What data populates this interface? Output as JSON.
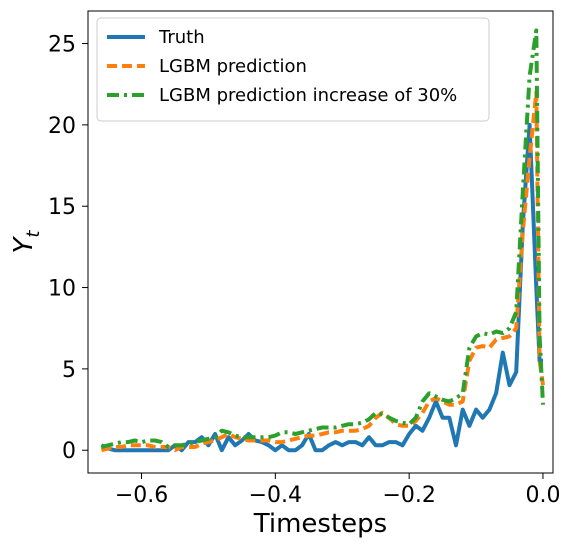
{
  "chart_data": {
    "type": "line",
    "title": "",
    "xlabel": "Timesteps",
    "ylabel": "Y",
    "ylabel_subscript": "t",
    "xlim": [
      -0.68,
      0.015
    ],
    "ylim": [
      -1.4,
      27
    ],
    "xticks": [
      -0.6,
      -0.4,
      -0.2,
      0.0
    ],
    "xtick_labels": [
      "−0.6",
      "−0.4",
      "−0.2",
      "0.0"
    ],
    "yticks": [
      0,
      5,
      10,
      15,
      20,
      25
    ],
    "ytick_labels": [
      "0",
      "5",
      "10",
      "15",
      "20",
      "25"
    ],
    "grid": false,
    "legend_position": "top-left",
    "series": [
      {
        "name": "Truth",
        "color": "#1f77b4",
        "style": "solid",
        "x": [
          -0.66,
          -0.65,
          -0.64,
          -0.63,
          -0.62,
          -0.61,
          -0.6,
          -0.59,
          -0.58,
          -0.57,
          -0.56,
          -0.55,
          -0.54,
          -0.53,
          -0.52,
          -0.51,
          -0.5,
          -0.49,
          -0.48,
          -0.47,
          -0.46,
          -0.45,
          -0.44,
          -0.43,
          -0.42,
          -0.41,
          -0.4,
          -0.39,
          -0.38,
          -0.37,
          -0.36,
          -0.35,
          -0.34,
          -0.33,
          -0.32,
          -0.31,
          -0.3,
          -0.29,
          -0.28,
          -0.27,
          -0.26,
          -0.25,
          -0.24,
          -0.23,
          -0.22,
          -0.21,
          -0.2,
          -0.19,
          -0.18,
          -0.17,
          -0.16,
          -0.15,
          -0.14,
          -0.13,
          -0.12,
          -0.11,
          -0.1,
          -0.09,
          -0.08,
          -0.07,
          -0.06,
          -0.05,
          -0.04,
          -0.03,
          -0.02,
          -0.01,
          -0.005,
          0.0
        ],
        "values": [
          0.3,
          0.1,
          0.0,
          0.0,
          0.0,
          0.0,
          0.0,
          0.0,
          0.0,
          0.0,
          0.0,
          0.3,
          0.0,
          0.5,
          0.5,
          0.8,
          0.3,
          1.0,
          0.0,
          0.8,
          0.3,
          0.6,
          1.0,
          0.6,
          0.5,
          0.3,
          0.0,
          0.3,
          0.0,
          0.0,
          0.3,
          1.0,
          0.0,
          0.0,
          0.3,
          0.5,
          0.3,
          0.5,
          0.5,
          0.3,
          0.8,
          0.3,
          0.3,
          0.5,
          0.5,
          0.3,
          1.0,
          1.5,
          1.2,
          2.0,
          3.0,
          2.0,
          2.0,
          0.3,
          2.5,
          1.5,
          2.5,
          2.0,
          2.5,
          3.5,
          6.0,
          4.0,
          4.8,
          14.0,
          20.0,
          10.0,
          5.5,
          5.5
        ]
      },
      {
        "name": "LGBM prediction",
        "color": "#ff7f0e",
        "style": "dashed",
        "x": [
          -0.66,
          -0.65,
          -0.64,
          -0.63,
          -0.62,
          -0.61,
          -0.6,
          -0.59,
          -0.58,
          -0.57,
          -0.56,
          -0.55,
          -0.54,
          -0.53,
          -0.52,
          -0.51,
          -0.5,
          -0.49,
          -0.48,
          -0.47,
          -0.46,
          -0.45,
          -0.44,
          -0.43,
          -0.42,
          -0.41,
          -0.4,
          -0.39,
          -0.38,
          -0.37,
          -0.36,
          -0.35,
          -0.34,
          -0.33,
          -0.32,
          -0.31,
          -0.3,
          -0.29,
          -0.28,
          -0.27,
          -0.26,
          -0.25,
          -0.24,
          -0.23,
          -0.22,
          -0.21,
          -0.2,
          -0.19,
          -0.18,
          -0.17,
          -0.16,
          -0.15,
          -0.14,
          -0.13,
          -0.12,
          -0.11,
          -0.1,
          -0.09,
          -0.08,
          -0.07,
          -0.06,
          -0.05,
          -0.04,
          -0.03,
          -0.02,
          -0.01,
          -0.005,
          0.0
        ],
        "values": [
          0.0,
          0.1,
          0.2,
          0.2,
          0.3,
          0.3,
          0.3,
          0.3,
          0.2,
          0.2,
          0.2,
          0.0,
          0.2,
          0.2,
          0.2,
          0.4,
          0.5,
          0.6,
          0.8,
          1.0,
          0.8,
          0.7,
          0.6,
          0.6,
          0.6,
          0.6,
          0.5,
          0.5,
          0.6,
          0.7,
          0.8,
          0.9,
          0.9,
          1.0,
          1.1,
          1.1,
          1.2,
          1.2,
          1.2,
          1.3,
          1.5,
          2.0,
          2.3,
          2.0,
          1.6,
          1.5,
          1.5,
          1.8,
          2.3,
          3.0,
          3.2,
          3.0,
          2.8,
          2.8,
          3.0,
          5.5,
          6.3,
          6.4,
          6.3,
          6.8,
          6.9,
          7.0,
          7.5,
          13.5,
          18.0,
          22.0,
          5.5,
          4.0
        ]
      },
      {
        "name": "LGBM prediction increase of 30%",
        "color": "#2ca02c",
        "style": "dashdot",
        "x": [
          -0.66,
          -0.65,
          -0.64,
          -0.63,
          -0.62,
          -0.61,
          -0.6,
          -0.59,
          -0.58,
          -0.57,
          -0.56,
          -0.55,
          -0.54,
          -0.53,
          -0.52,
          -0.51,
          -0.5,
          -0.49,
          -0.48,
          -0.47,
          -0.46,
          -0.45,
          -0.44,
          -0.43,
          -0.42,
          -0.41,
          -0.4,
          -0.39,
          -0.38,
          -0.37,
          -0.36,
          -0.35,
          -0.34,
          -0.33,
          -0.32,
          -0.31,
          -0.3,
          -0.29,
          -0.28,
          -0.27,
          -0.26,
          -0.25,
          -0.24,
          -0.23,
          -0.22,
          -0.21,
          -0.2,
          -0.19,
          -0.18,
          -0.17,
          -0.16,
          -0.15,
          -0.14,
          -0.13,
          -0.12,
          -0.11,
          -0.1,
          -0.09,
          -0.08,
          -0.07,
          -0.06,
          -0.05,
          -0.04,
          -0.03,
          -0.02,
          -0.01,
          -0.005,
          0.0
        ],
        "values": [
          0.2,
          0.3,
          0.4,
          0.5,
          0.5,
          0.6,
          0.5,
          0.6,
          0.6,
          0.5,
          0.2,
          0.3,
          0.3,
          0.4,
          0.5,
          0.6,
          0.7,
          0.8,
          1.2,
          1.1,
          0.9,
          0.8,
          0.8,
          0.8,
          0.8,
          0.8,
          0.9,
          1.1,
          1.1,
          1.0,
          1.1,
          1.2,
          1.3,
          1.4,
          1.4,
          1.4,
          1.5,
          1.6,
          1.6,
          1.7,
          1.9,
          2.3,
          2.2,
          2.0,
          1.8,
          1.7,
          1.6,
          2.0,
          3.0,
          3.5,
          3.3,
          3.1,
          3.0,
          3.2,
          3.5,
          6.3,
          7.0,
          7.2,
          7.1,
          7.3,
          7.2,
          7.5,
          8.5,
          16.0,
          23.0,
          25.8,
          7.0,
          2.8
        ]
      }
    ]
  }
}
